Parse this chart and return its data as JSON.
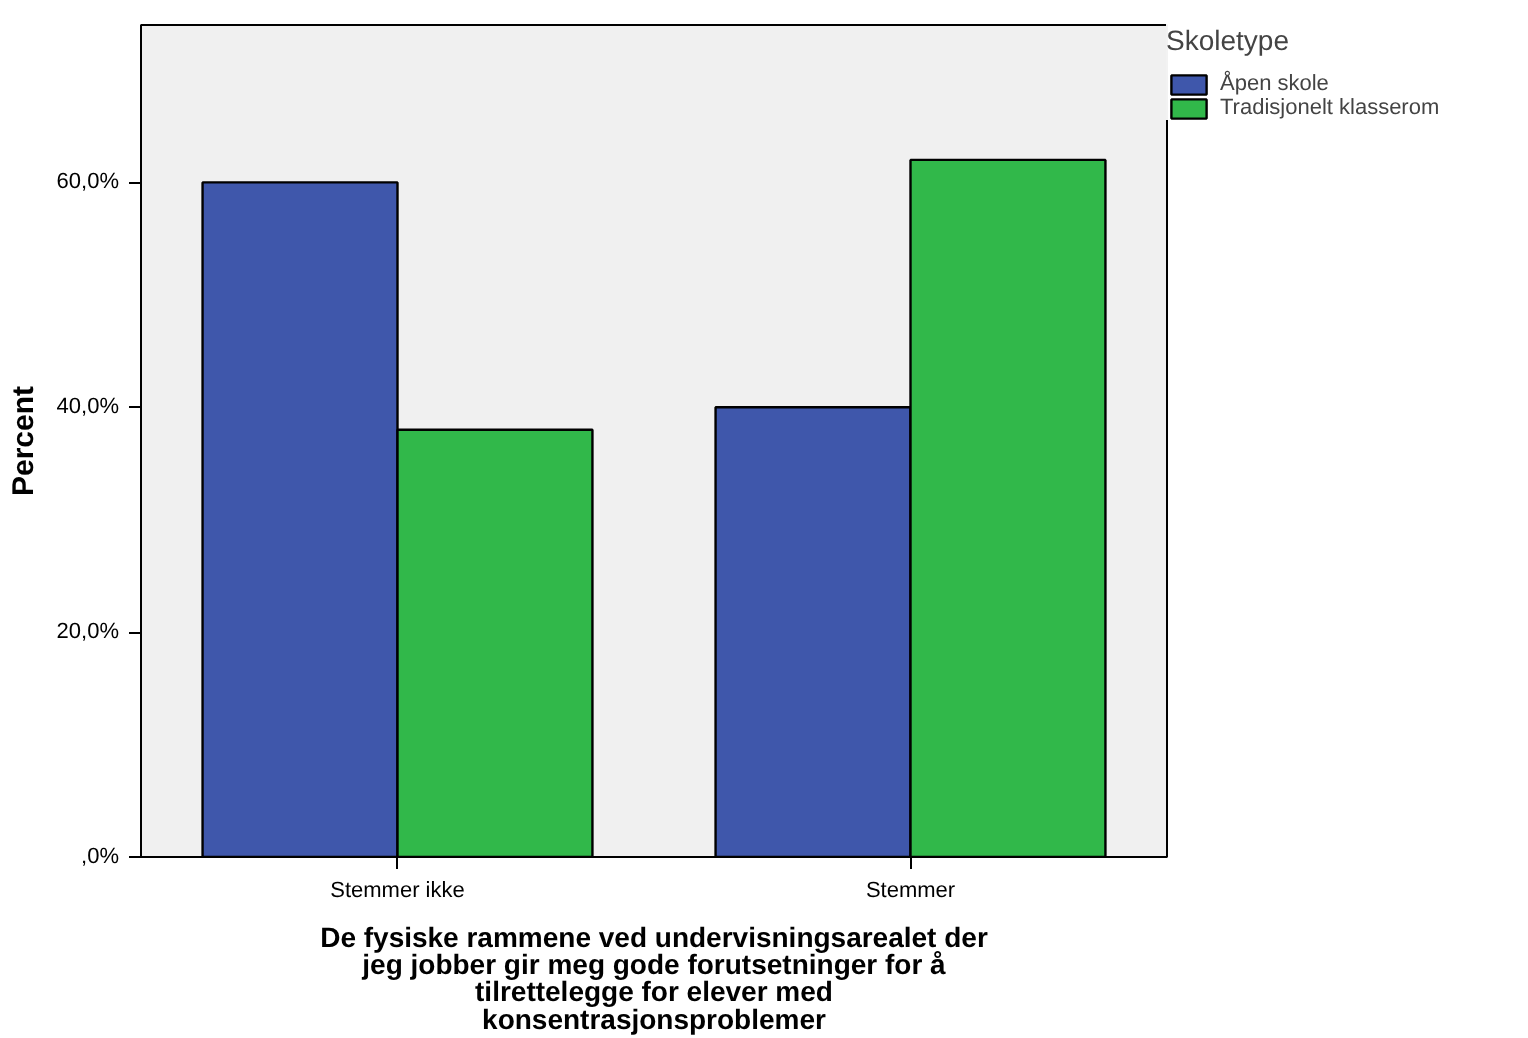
{
  "chart_data": {
    "type": "bar",
    "categories": [
      "Stemmer ikke",
      "Stemmer"
    ],
    "series": [
      {
        "name": "Åpen skole",
        "color": "#3f57ab",
        "values": [
          60,
          40
        ]
      },
      {
        "name": "Tradisjonelt klasserom",
        "color": "#31b84a",
        "values": [
          38,
          62
        ]
      }
    ],
    "xlabel": "De fysiske rammene ved undervisningsarealet der jeg jobber gir meg gode forutsetninger for å tilrettelegge for elever med konsentrasjonsproblemer",
    "ylabel": "Percent",
    "legend_title": "Skoletype",
    "legend": "top right",
    "grid": false,
    "ylim": [
      0,
      74
    ],
    "yticks": [
      {
        "value": 0,
        "label": ",0%"
      },
      {
        "value": 20,
        "label": "20,0%"
      },
      {
        "value": 40,
        "label": "40,0%"
      },
      {
        "value": 60,
        "label": "60,0%"
      }
    ]
  }
}
